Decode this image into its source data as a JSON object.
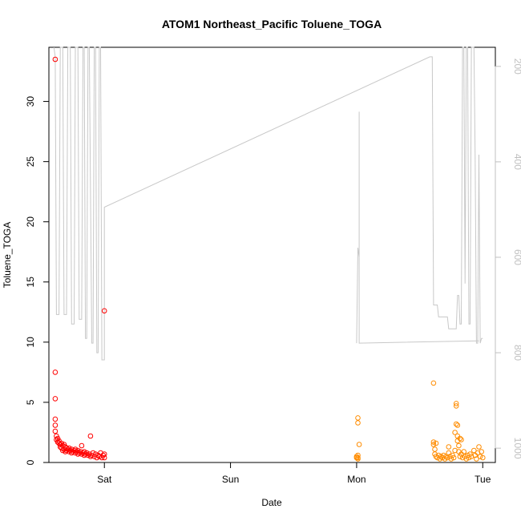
{
  "chart_data": {
    "type": "scatter",
    "title": "ATOM1 Northeast_Pacific Toluene_TOGA",
    "xlabel": "Date",
    "ylabel": "Toluene_TOGA",
    "x_unit": "days since Sat 00:00",
    "xlim": [
      -0.44,
      3.1
    ],
    "ylim": [
      0,
      34.5
    ],
    "x_ticks": [
      {
        "value": 0,
        "label": "Sat"
      },
      {
        "value": 1,
        "label": "Sun"
      },
      {
        "value": 2,
        "label": "Mon"
      },
      {
        "value": 3,
        "label": "Tue"
      }
    ],
    "y_ticks": [
      0,
      5,
      10,
      15,
      20,
      25,
      30
    ],
    "right_axis": {
      "ylim_reversed": [
        1030,
        160
      ],
      "ticks": [
        200,
        400,
        600,
        800,
        1000
      ],
      "color": "#c0c0c0"
    },
    "grid": false,
    "series": [
      {
        "color": "#ff0000",
        "marker": "open-circle",
        "points": [
          [
            -0.39,
            33.5
          ],
          [
            -0.39,
            7.5
          ],
          [
            -0.39,
            5.3
          ],
          [
            -0.39,
            3.6
          ],
          [
            -0.39,
            3.1
          ],
          [
            -0.39,
            2.6
          ],
          [
            -0.38,
            2.2
          ],
          [
            -0.38,
            1.9
          ],
          [
            -0.37,
            2.0
          ],
          [
            -0.37,
            1.7
          ],
          [
            -0.36,
            1.6
          ],
          [
            -0.36,
            1.8
          ],
          [
            -0.35,
            1.5
          ],
          [
            -0.35,
            1.3
          ],
          [
            -0.34,
            1.6
          ],
          [
            -0.34,
            1.2
          ],
          [
            -0.33,
            1.4
          ],
          [
            -0.33,
            1.0
          ],
          [
            -0.32,
            1.5
          ],
          [
            -0.32,
            1.1
          ],
          [
            -0.31,
            1.3
          ],
          [
            -0.31,
            0.9
          ],
          [
            -0.3,
            1.2
          ],
          [
            -0.3,
            1.0
          ],
          [
            -0.29,
            1.1
          ],
          [
            -0.28,
            0.9
          ],
          [
            -0.28,
            1.2
          ],
          [
            -0.27,
            1.0
          ],
          [
            -0.26,
            0.8
          ],
          [
            -0.26,
            1.1
          ],
          [
            -0.25,
            0.9
          ],
          [
            -0.24,
            1.0
          ],
          [
            -0.23,
            0.8
          ],
          [
            -0.23,
            1.1
          ],
          [
            -0.22,
            0.9
          ],
          [
            -0.21,
            0.7
          ],
          [
            -0.21,
            1.0
          ],
          [
            -0.2,
            0.8
          ],
          [
            -0.19,
            0.9
          ],
          [
            -0.18,
            0.7
          ],
          [
            -0.18,
            1.4
          ],
          [
            -0.17,
            0.8
          ],
          [
            -0.16,
            0.6
          ],
          [
            -0.16,
            0.9
          ],
          [
            -0.15,
            0.7
          ],
          [
            -0.14,
            0.8
          ],
          [
            -0.13,
            0.6
          ],
          [
            -0.12,
            0.7
          ],
          [
            -0.11,
            0.5
          ],
          [
            -0.11,
            2.2
          ],
          [
            -0.1,
            0.6
          ],
          [
            -0.09,
            0.8
          ],
          [
            -0.08,
            0.5
          ],
          [
            -0.07,
            0.7
          ],
          [
            -0.06,
            0.4
          ],
          [
            -0.05,
            0.6
          ],
          [
            -0.04,
            0.5
          ],
          [
            -0.03,
            0.8
          ],
          [
            -0.02,
            0.4
          ],
          [
            -0.01,
            0.6
          ],
          [
            0.0,
            12.6
          ],
          [
            0.0,
            0.7
          ],
          [
            0.0,
            0.4
          ]
        ]
      },
      {
        "color": "#ff8c00",
        "marker": "open-circle",
        "points": [
          [
            2.0,
            0.4
          ],
          [
            2.0,
            0.5
          ],
          [
            2.01,
            0.6
          ],
          [
            2.01,
            0.3
          ],
          [
            2.01,
            3.7
          ],
          [
            2.01,
            3.3
          ],
          [
            2.02,
            1.5
          ],
          [
            2.01,
            0.4
          ],
          [
            2.61,
            6.6
          ],
          [
            2.61,
            1.7
          ],
          [
            2.61,
            1.5
          ],
          [
            2.62,
            1.1
          ],
          [
            2.62,
            0.7
          ],
          [
            2.63,
            0.5
          ],
          [
            2.63,
            1.6
          ],
          [
            2.64,
            0.4
          ],
          [
            2.65,
            0.6
          ],
          [
            2.66,
            0.3
          ],
          [
            2.67,
            0.5
          ],
          [
            2.68,
            0.4
          ],
          [
            2.69,
            0.6
          ],
          [
            2.7,
            0.3
          ],
          [
            2.71,
            0.5
          ],
          [
            2.72,
            0.4
          ],
          [
            2.73,
            0.8
          ],
          [
            2.73,
            1.3
          ],
          [
            2.74,
            0.5
          ],
          [
            2.75,
            0.3
          ],
          [
            2.76,
            0.6
          ],
          [
            2.77,
            0.4
          ],
          [
            2.78,
            1.0
          ],
          [
            2.78,
            2.5
          ],
          [
            2.79,
            4.9
          ],
          [
            2.79,
            4.7
          ],
          [
            2.79,
            3.2
          ],
          [
            2.8,
            3.1
          ],
          [
            2.8,
            2.2
          ],
          [
            2.8,
            1.8
          ],
          [
            2.81,
            1.4
          ],
          [
            2.81,
            0.9
          ],
          [
            2.82,
            0.5
          ],
          [
            2.82,
            2.0
          ],
          [
            2.83,
            1.9
          ],
          [
            2.83,
            0.7
          ],
          [
            2.84,
            0.4
          ],
          [
            2.85,
            0.9
          ],
          [
            2.86,
            0.5
          ],
          [
            2.87,
            0.3
          ],
          [
            2.88,
            0.6
          ],
          [
            2.89,
            0.4
          ],
          [
            2.9,
            0.7
          ],
          [
            2.91,
            0.5
          ],
          [
            2.93,
            1.0
          ],
          [
            2.94,
            0.6
          ],
          [
            2.95,
            0.3
          ],
          [
            2.96,
            0.8
          ],
          [
            2.97,
            1.3
          ],
          [
            2.98,
            0.5
          ],
          [
            2.99,
            0.9
          ],
          [
            3.0,
            0.4
          ]
        ]
      }
    ],
    "altitude_trace": {
      "color": "#c8c8c8",
      "points": [
        [
          -0.4,
          160
        ],
        [
          -0.39,
          180
        ],
        [
          -0.38,
          720
        ],
        [
          -0.36,
          720
        ],
        [
          -0.35,
          160
        ],
        [
          -0.33,
          160
        ],
        [
          -0.32,
          720
        ],
        [
          -0.3,
          720
        ],
        [
          -0.29,
          160
        ],
        [
          -0.27,
          160
        ],
        [
          -0.26,
          740
        ],
        [
          -0.24,
          740
        ],
        [
          -0.23,
          160
        ],
        [
          -0.21,
          160
        ],
        [
          -0.2,
          730
        ],
        [
          -0.18,
          730
        ],
        [
          -0.17,
          160
        ],
        [
          -0.16,
          160
        ],
        [
          -0.15,
          770
        ],
        [
          -0.14,
          770
        ],
        [
          -0.13,
          160
        ],
        [
          -0.12,
          160
        ],
        [
          -0.1,
          780
        ],
        [
          -0.09,
          780
        ],
        [
          -0.08,
          160
        ],
        [
          -0.07,
          160
        ],
        [
          -0.06,
          800
        ],
        [
          -0.05,
          800
        ],
        [
          -0.04,
          160
        ],
        [
          -0.03,
          160
        ],
        [
          -0.02,
          815
        ],
        [
          0.0,
          815
        ],
        [
          0.0,
          495
        ],
        [
          2.58,
          180
        ],
        [
          2.6,
          180
        ],
        [
          2.61,
          700
        ],
        [
          2.64,
          700
        ],
        [
          2.65,
          725
        ],
        [
          2.72,
          725
        ],
        [
          2.73,
          750
        ],
        [
          2.79,
          750
        ],
        [
          2.8,
          680
        ],
        [
          2.81,
          680
        ],
        [
          2.82,
          740
        ],
        [
          2.83,
          740
        ],
        [
          2.84,
          160
        ],
        [
          2.85,
          160
        ],
        [
          2.86,
          655
        ],
        [
          2.87,
          160
        ],
        [
          2.88,
          160
        ],
        [
          2.89,
          740
        ],
        [
          2.9,
          740
        ],
        [
          2.91,
          160
        ],
        [
          2.93,
          160
        ],
        [
          2.94,
          390
        ],
        [
          2.95,
          780
        ],
        [
          2.96,
          780
        ],
        [
          2.97,
          385
        ],
        [
          2.98,
          780
        ],
        [
          2.99,
          770
        ],
        [
          3.0,
          770
        ]
      ],
      "second_segment": [
        [
          2.0,
          780
        ],
        [
          2.01,
          580
        ],
        [
          2.02,
          600
        ],
        [
          2.02,
          295
        ],
        [
          2.02,
          780
        ],
        [
          2.97,
          775
        ]
      ]
    }
  }
}
